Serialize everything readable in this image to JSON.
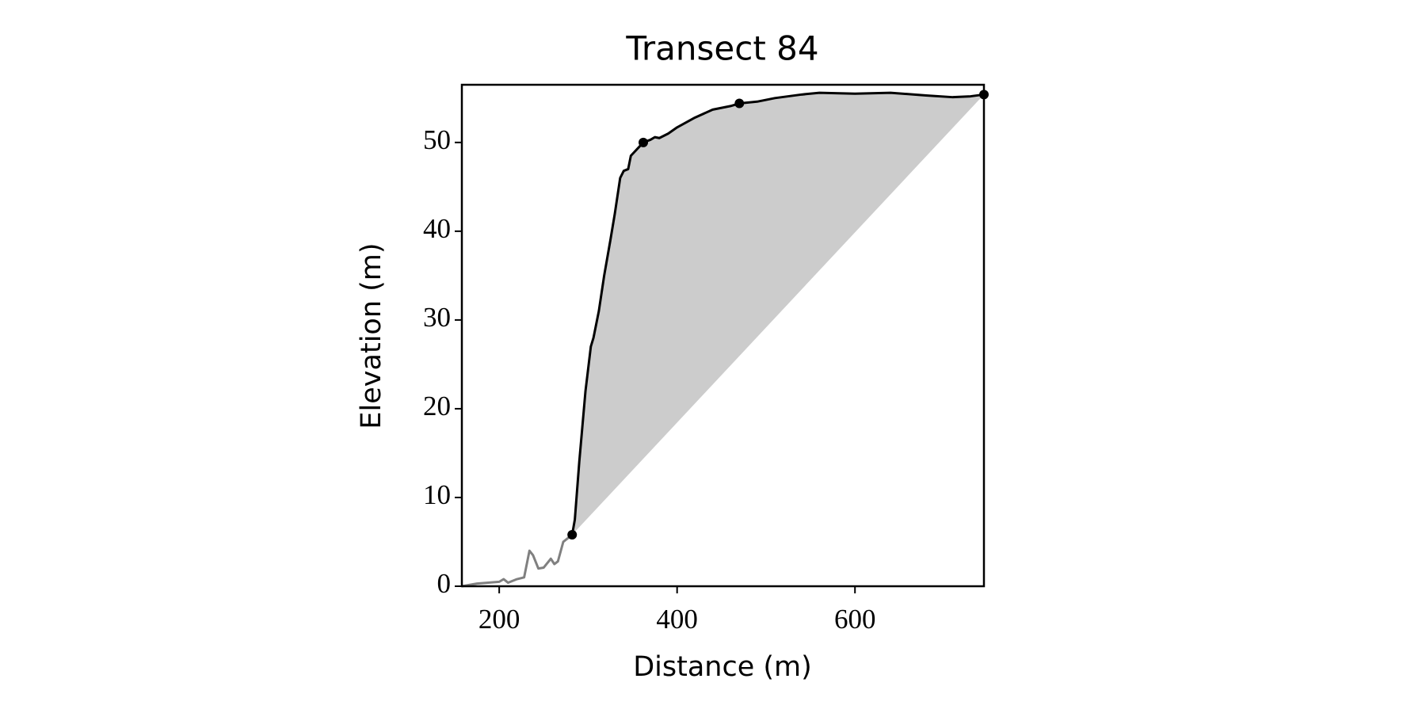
{
  "chart_data": {
    "type": "line",
    "title": "Transect 84",
    "xlabel": "Distance (m)",
    "ylabel": "Elevation (m)",
    "xlim": [
      158,
      745
    ],
    "ylim": [
      0,
      56.5
    ],
    "xticks": [
      200,
      400,
      600
    ],
    "yticks": [
      0,
      10,
      20,
      30,
      40,
      50
    ],
    "fill_color": "#cccccc",
    "series": [
      {
        "color": "#808080",
        "x": [
          158,
          175,
          200,
          205,
          210,
          220,
          228,
          234,
          238,
          244,
          250,
          258,
          262,
          266,
          272,
          282
        ],
        "values": [
          0,
          0.3,
          0.5,
          0.8,
          0.4,
          0.8,
          1.0,
          4,
          3.5,
          2,
          2.1,
          3.1,
          2.5,
          2.8,
          5,
          5.8
        ]
      },
      {
        "color": "#000000",
        "x": [
          282,
          285,
          290,
          297,
          303,
          306,
          312,
          318,
          325,
          330,
          336,
          340,
          345,
          348,
          362,
          370,
          375,
          380,
          390,
          400,
          420,
          440,
          460,
          470,
          490,
          510,
          540,
          560,
          600,
          640,
          680,
          710,
          730,
          745
        ],
        "values": [
          5.8,
          7.5,
          14,
          22,
          27,
          28,
          31,
          35,
          39,
          42,
          46,
          46.8,
          47,
          48.5,
          50,
          50.3,
          50.6,
          50.5,
          51,
          51.7,
          52.8,
          53.7,
          54.1,
          54.4,
          54.6,
          55,
          55.4,
          55.6,
          55.5,
          55.6,
          55.3,
          55.1,
          55.2,
          55.4
        ]
      }
    ],
    "points": {
      "color": "#000000",
      "x": [
        282,
        362,
        470,
        745
      ],
      "values": [
        5.8,
        50,
        54.4,
        55.4
      ]
    }
  }
}
